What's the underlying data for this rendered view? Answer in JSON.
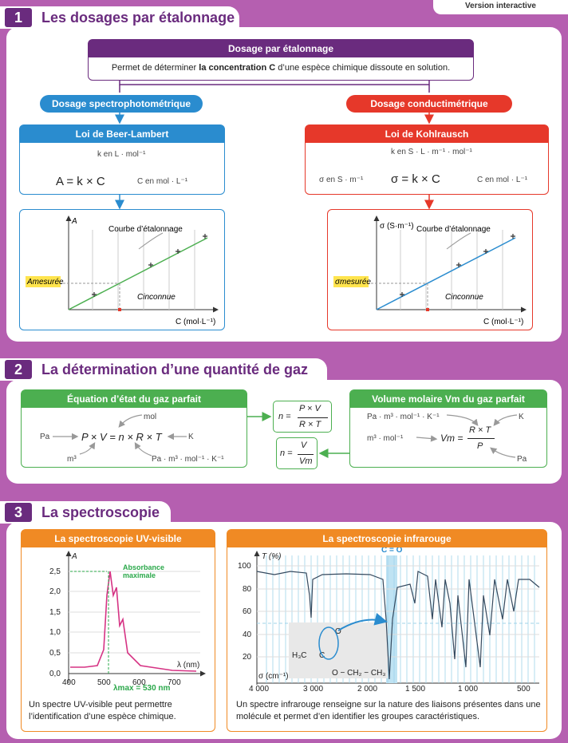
{
  "top_tab": {
    "label": "Version interactive"
  },
  "section1": {
    "number": "1",
    "title": "Les dosages par étalonnage",
    "main_box": {
      "title": "Dosage par étalonnage",
      "text_prefix": "Permet de déterminer ",
      "text_bold": "la concentration C",
      "text_suffix": " d’une espèce chimique dissoute en solution."
    },
    "left": {
      "pill": "Dosage spectrophotométrique",
      "law_title": "Loi de Beer-Lambert",
      "formula": "A = k × C",
      "unit_k": "k en L · mol⁻¹",
      "unit_c": "C en mol · L⁻¹",
      "graph": {
        "ylabel": "A",
        "curve_label": "Courbe d’étalonnage",
        "measured": "Amesurée",
        "unknown": "Cinconnue",
        "xlabel": "C (mol·L⁻¹)"
      }
    },
    "right": {
      "pill": "Dosage conductimétrique",
      "law_title": "Loi de Kohlrausch",
      "formula": "σ = k × C",
      "unit_k": "k en S · L · m⁻¹ · mol⁻¹",
      "unit_sigma": "σ en S · m⁻¹",
      "unit_c": "C en mol · L⁻¹",
      "graph": {
        "ylabel": "σ (S·m⁻¹)",
        "curve_label": "Courbe d’étalonnage",
        "measured": "σmesurée",
        "unknown": "Cinconnue",
        "xlabel": "C (mol·L⁻¹)"
      }
    }
  },
  "section2": {
    "number": "2",
    "title": "La détermination d’une quantité de gaz",
    "left_box": {
      "title": "Équation d’état du gaz parfait",
      "formula": "P × V = n × R × T",
      "mol": "mol",
      "pa": "Pa",
      "k": "K",
      "m3": "m³",
      "r_unit": "Pa · m³ · mol⁻¹ · K⁻¹"
    },
    "formula_pvrt": {
      "lhs": "n =",
      "num": "P × V",
      "den": "R × T"
    },
    "formula_vvm": {
      "lhs": "n =",
      "num": "V",
      "den": "Vm"
    },
    "right_box": {
      "title": "Volume molaire Vm du gaz parfait",
      "formula_lhs": "Vm =",
      "num": "R × T",
      "den": "P",
      "r_unit": "Pa · m³ · mol⁻¹ · K⁻¹",
      "k": "K",
      "vm_unit": "m³ · mol⁻¹",
      "pa": "Pa"
    }
  },
  "section3": {
    "number": "3",
    "title": "La spectroscopie",
    "uv": {
      "title": "La spectroscopie UV-visible",
      "ylabel": "A",
      "xlabel": "λ (nm)",
      "annotation": "Absorbance maximale",
      "lambda_max": "λmax = 530 nm",
      "yticks": [
        "2,5",
        "2,0",
        "1,5",
        "1,0",
        "0,5",
        "0,0"
      ],
      "xticks": [
        "400",
        "500",
        "600",
        "700"
      ],
      "caption": "Un spectre UV-visible peut permettre l’identification d’une espèce chimique."
    },
    "ir": {
      "title": "La spectroscopie infrarouge",
      "ylabel": "T (%)",
      "xlabel": "σ (cm⁻¹)",
      "peak_label": "C = O",
      "yticks": [
        "100",
        "80",
        "60",
        "40",
        "20"
      ],
      "xticks": [
        "4 000",
        "3 000",
        "2 000",
        "1 500",
        "1 000",
        "500"
      ],
      "molecule": {
        "left": "H₃C",
        "carbon": "C",
        "oxygen": "O",
        "right": "O − CH₂ − CH₃"
      },
      "caption": "Un spectre infrarouge renseigne sur la nature des liaisons présentes dans une molécule et permet d’en identifier les groupes caractéristiques."
    }
  },
  "colors": {
    "purple": "#b55fb0",
    "dark_purple": "#6a2b7e",
    "blue": "#2a8ccf",
    "red": "#e6382a",
    "green": "#4caf50",
    "orange": "#f08a24"
  }
}
